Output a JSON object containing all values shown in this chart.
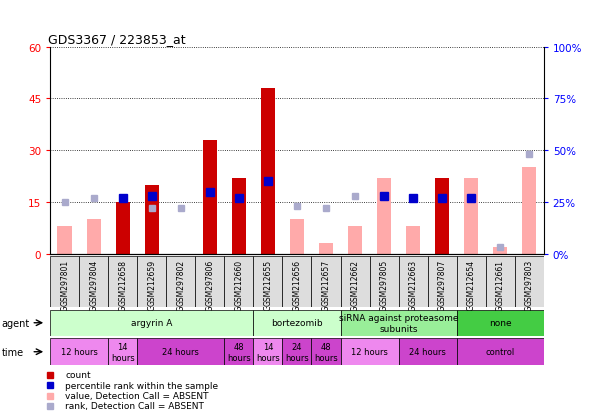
{
  "title": "GDS3367 / 223853_at",
  "samples": [
    "GSM297801",
    "GSM297804",
    "GSM212658",
    "GSM212659",
    "GSM297802",
    "GSM297806",
    "GSM212660",
    "GSM212655",
    "GSM212656",
    "GSM212657",
    "GSM212662",
    "GSM297805",
    "GSM212663",
    "GSM297807",
    "GSM212654",
    "GSM212661",
    "GSM297803"
  ],
  "count_present": [
    0,
    0,
    15,
    20,
    0,
    33,
    22,
    48,
    0,
    0,
    0,
    0,
    0,
    22,
    0,
    0,
    0
  ],
  "count_absent": [
    8,
    10,
    0,
    5,
    0,
    0,
    0,
    0,
    10,
    3,
    8,
    22,
    8,
    0,
    22,
    2,
    25
  ],
  "rank_present": [
    0,
    0,
    27,
    28,
    0,
    30,
    27,
    35,
    0,
    0,
    0,
    28,
    27,
    27,
    27,
    0,
    0
  ],
  "rank_absent": [
    25,
    27,
    0,
    22,
    22,
    0,
    0,
    0,
    23,
    22,
    28,
    0,
    0,
    0,
    0,
    3,
    48
  ],
  "agent_groups": [
    {
      "label": "argyrin A",
      "start": 0,
      "end": 7,
      "color": "#ccffcc"
    },
    {
      "label": "bortezomib",
      "start": 7,
      "end": 10,
      "color": "#ccffcc"
    },
    {
      "label": "siRNA against proteasome\nsubunits",
      "start": 10,
      "end": 14,
      "color": "#99ee99"
    },
    {
      "label": "none",
      "start": 14,
      "end": 17,
      "color": "#44cc44"
    }
  ],
  "time_groups": [
    {
      "label": "12 hours",
      "start": 0,
      "end": 2,
      "color": "#ee88ee"
    },
    {
      "label": "14\nhours",
      "start": 2,
      "end": 3,
      "color": "#ee88ee"
    },
    {
      "label": "24 hours",
      "start": 3,
      "end": 6,
      "color": "#cc44cc"
    },
    {
      "label": "48\nhours",
      "start": 6,
      "end": 7,
      "color": "#cc44cc"
    },
    {
      "label": "14\nhours",
      "start": 7,
      "end": 8,
      "color": "#ee88ee"
    },
    {
      "label": "24\nhours",
      "start": 8,
      "end": 9,
      "color": "#cc44cc"
    },
    {
      "label": "48\nhours",
      "start": 9,
      "end": 10,
      "color": "#cc44cc"
    },
    {
      "label": "12 hours",
      "start": 10,
      "end": 12,
      "color": "#ee88ee"
    },
    {
      "label": "24 hours",
      "start": 12,
      "end": 14,
      "color": "#cc44cc"
    },
    {
      "label": "control",
      "start": 14,
      "end": 17,
      "color": "#cc44cc"
    }
  ],
  "ylim_left": [
    0,
    60
  ],
  "ylim_right": [
    0,
    100
  ],
  "yticks_left": [
    0,
    15,
    30,
    45,
    60
  ],
  "yticks_right": [
    0,
    25,
    50,
    75,
    100
  ],
  "yticklabels_right": [
    "0%",
    "25%",
    "50%",
    "75%",
    "100%"
  ],
  "bar_color_present": "#cc0000",
  "bar_color_absent": "#ffaaaa",
  "rank_color_present": "#0000cc",
  "rank_color_absent": "#aaaacc",
  "legend_items": [
    {
      "label": "count",
      "color": "#cc0000"
    },
    {
      "label": "percentile rank within the sample",
      "color": "#0000cc"
    },
    {
      "label": "value, Detection Call = ABSENT",
      "color": "#ffaaaa"
    },
    {
      "label": "rank, Detection Call = ABSENT",
      "color": "#aaaacc"
    }
  ]
}
